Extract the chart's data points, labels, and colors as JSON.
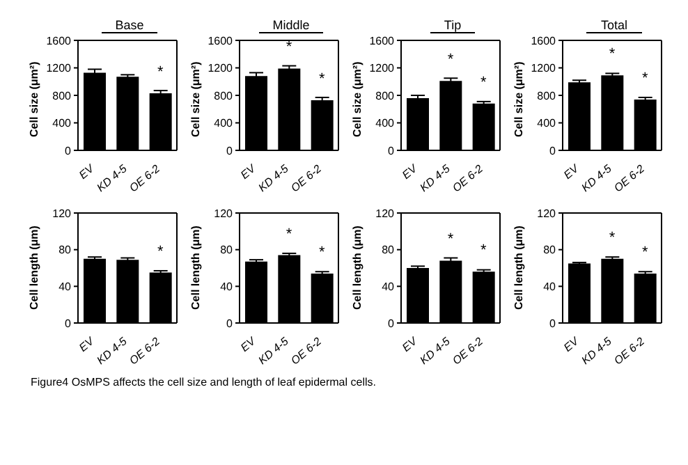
{
  "chart_data": [
    {
      "type": "bar",
      "title": "Base",
      "ylabel": "Cell size (μm²)",
      "categories": [
        "EV",
        "KD 4-5",
        "OE 6-2"
      ],
      "values": [
        1130,
        1070,
        830
      ],
      "errors": [
        50,
        30,
        40
      ],
      "color": "#000000",
      "ylim": [
        0,
        1600
      ],
      "yticks": [
        0,
        400,
        800,
        1200,
        1600
      ],
      "grid": false,
      "annotations": [
        {
          "text": "*",
          "x": "OE 6-2",
          "y": 830
        }
      ]
    },
    {
      "type": "bar",
      "title": "Middle",
      "ylabel": "Cell size (μm²)",
      "categories": [
        "EV",
        "KD 4-5",
        "OE 6-2"
      ],
      "values": [
        1080,
        1190,
        730
      ],
      "errors": [
        50,
        40,
        40
      ],
      "color": "#000000",
      "ylim": [
        0,
        1600
      ],
      "yticks": [
        0,
        400,
        800,
        1200,
        1600
      ],
      "grid": false,
      "annotations": [
        {
          "text": "*",
          "x": "KD 4-5",
          "y": 1190
        },
        {
          "text": "*",
          "x": "OE 6-2",
          "y": 730
        }
      ]
    },
    {
      "type": "bar",
      "title": "Tip",
      "ylabel": "Cell size (μm²)",
      "categories": [
        "EV",
        "KD 4-5",
        "OE 6-2"
      ],
      "values": [
        760,
        1010,
        680
      ],
      "errors": [
        40,
        40,
        30
      ],
      "color": "#000000",
      "ylim": [
        0,
        1600
      ],
      "yticks": [
        0,
        400,
        800,
        1200,
        1600
      ],
      "grid": false,
      "annotations": [
        {
          "text": "*",
          "x": "KD 4-5",
          "y": 1010
        },
        {
          "text": "*",
          "x": "OE 6-2",
          "y": 680
        }
      ]
    },
    {
      "type": "bar",
      "title": "Total",
      "ylabel": "Cell size (μm²)",
      "categories": [
        "EV",
        "KD 4-5",
        "OE 6-2"
      ],
      "values": [
        990,
        1090,
        740
      ],
      "errors": [
        30,
        30,
        30
      ],
      "color": "#000000",
      "ylim": [
        0,
        1600
      ],
      "yticks": [
        0,
        400,
        800,
        1200,
        1600
      ],
      "grid": false,
      "annotations": [
        {
          "text": "*",
          "x": "KD 4-5",
          "y": 1090
        },
        {
          "text": "*",
          "x": "OE 6-2",
          "y": 740
        }
      ]
    },
    {
      "type": "bar",
      "ylabel": "Cell length (μm)",
      "categories": [
        "EV",
        "KD 4-5",
        "OE 6-2"
      ],
      "values": [
        70,
        69,
        55
      ],
      "errors": [
        2,
        2,
        2
      ],
      "color": "#000000",
      "ylim": [
        0,
        120
      ],
      "yticks": [
        0,
        40,
        80,
        120
      ],
      "grid": false,
      "annotations": [
        {
          "text": "*",
          "x": "OE 6-2",
          "y": 55
        }
      ]
    },
    {
      "type": "bar",
      "ylabel": "Cell length (μm)",
      "categories": [
        "EV",
        "KD 4-5",
        "OE 6-2"
      ],
      "values": [
        67,
        74,
        54
      ],
      "errors": [
        2,
        2,
        2
      ],
      "color": "#000000",
      "ylim": [
        0,
        120
      ],
      "yticks": [
        0,
        40,
        80,
        120
      ],
      "grid": false,
      "annotations": [
        {
          "text": "*",
          "x": "KD 4-5",
          "y": 74
        },
        {
          "text": "*",
          "x": "OE 6-2",
          "y": 54
        }
      ]
    },
    {
      "type": "bar",
      "ylabel": "Cell length (μm)",
      "categories": [
        "EV",
        "KD 4-5",
        "OE 6-2"
      ],
      "values": [
        60,
        68,
        56
      ],
      "errors": [
        2,
        3,
        2
      ],
      "color": "#000000",
      "ylim": [
        0,
        120
      ],
      "yticks": [
        0,
        40,
        80,
        120
      ],
      "grid": false,
      "annotations": [
        {
          "text": "*",
          "x": "KD 4-5",
          "y": 68
        },
        {
          "text": "*",
          "x": "OE 6-2",
          "y": 56
        }
      ]
    },
    {
      "type": "bar",
      "ylabel": "Cell length (μm)",
      "categories": [
        "EV",
        "KD 4-5",
        "OE 6-2"
      ],
      "values": [
        65,
        70,
        54
      ],
      "errors": [
        1,
        2,
        2
      ],
      "color": "#000000",
      "ylim": [
        0,
        120
      ],
      "yticks": [
        0,
        40,
        80,
        120
      ],
      "grid": false,
      "annotations": [
        {
          "text": "*",
          "x": "KD 4-5",
          "y": 70
        },
        {
          "text": "*",
          "x": "OE 6-2",
          "y": 54
        },
        "Figure4 OsMPS affects the cell size and length of leaf epidermal cells."
      ]
    }
  ]
}
